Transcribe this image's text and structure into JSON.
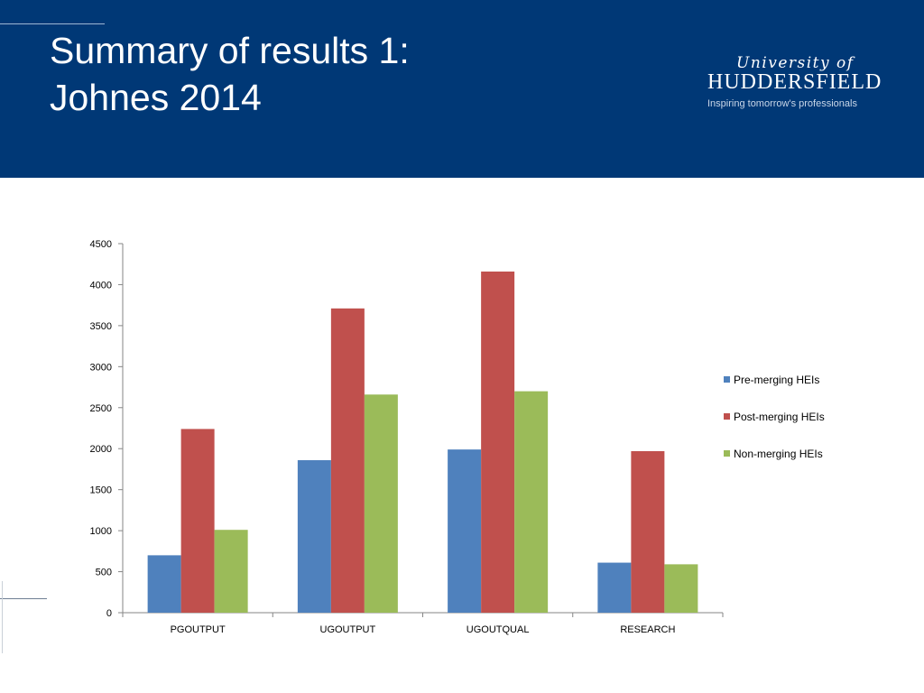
{
  "header": {
    "title": "Summary of results 1:\nJohnes 2014",
    "bg_color": "#003876"
  },
  "logo": {
    "line1": "University of",
    "line2": "HUDDERSFIELD",
    "line3": "Inspiring tomorrow's professionals"
  },
  "chart_data": {
    "type": "bar",
    "title": "",
    "xlabel": "",
    "ylabel": "",
    "categories": [
      "PGOUTPUT",
      "UGOUTPUT",
      "UGOUTQUAL",
      "RESEARCH"
    ],
    "series": [
      {
        "name": "Pre-merging HEIs",
        "color": "#4f81bd",
        "values": [
          700,
          1860,
          1990,
          610
        ]
      },
      {
        "name": "Post-merging HEIs",
        "color": "#c0504d",
        "values": [
          2240,
          3710,
          4160,
          1970
        ]
      },
      {
        "name": "Non-merging HEIs",
        "color": "#9bbb59",
        "values": [
          1010,
          2660,
          2700,
          590
        ]
      }
    ],
    "ylim": [
      0,
      4500
    ],
    "yticks": [
      0,
      500,
      1000,
      1500,
      2000,
      2500,
      3000,
      3500,
      4000,
      4500
    ],
    "grid": false,
    "legend_position": "right"
  }
}
